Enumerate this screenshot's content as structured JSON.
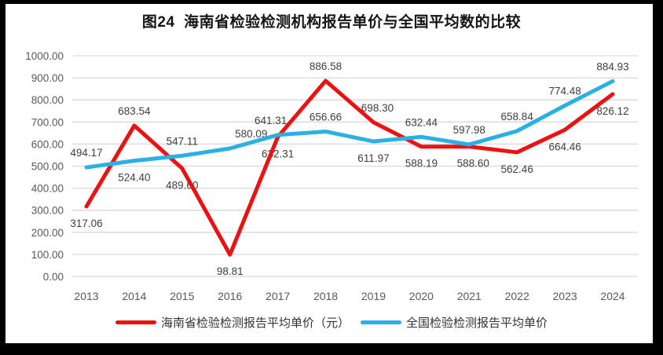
{
  "title": "图24  海南省检验检测机构报告单价与全国平均数的比较",
  "colors": {
    "hainan_red": "#EE1111",
    "national_blue": "#2BB0E6",
    "grid": "#D9D9D9",
    "axis_text": "#595959",
    "data_label": "#3F3F3F",
    "title_text": "#141414",
    "frame": "#000000"
  },
  "chart_data": {
    "type": "line",
    "categories": [
      "2013",
      "2014",
      "2015",
      "2016",
      "2017",
      "2018",
      "2019",
      "2020",
      "2021",
      "2022",
      "2023",
      "2024"
    ],
    "series": [
      {
        "key": "hainan",
        "name": "海南省检验检测报告平均单价（元）",
        "color": "#EE1111",
        "values": [
          317.06,
          683.54,
          489.6,
          98.81,
          632.31,
          886.58,
          698.3,
          588.19,
          588.6,
          562.46,
          664.46,
          826.12
        ],
        "label_pos": [
          "below",
          "above",
          "below",
          "below",
          "below",
          "above",
          "above",
          "below",
          "below",
          "below",
          "below",
          "below"
        ],
        "label_dx": [
          0,
          0,
          0,
          0,
          0,
          0,
          5,
          0,
          5,
          0,
          0,
          0
        ]
      },
      {
        "key": "national",
        "name": "全国检验检测报告平均单价",
        "color": "#2BB0E6",
        "values": [
          494.17,
          524.4,
          547.11,
          580.09,
          641.31,
          656.66,
          611.97,
          632.44,
          597.98,
          658.84,
          774.48,
          884.93
        ],
        "label_pos": [
          "above",
          "below",
          "above",
          "above",
          "above",
          "above",
          "below",
          "above",
          "above",
          "above",
          "above",
          "above"
        ],
        "label_dx": [
          0,
          0,
          0,
          27,
          -9,
          0,
          0,
          0,
          0,
          0,
          0,
          0
        ]
      }
    ],
    "ylim": [
      0,
      1000
    ],
    "ytick_step": 100,
    "ytick_labels": [
      "0.00",
      "100.00",
      "200.00",
      "300.00",
      "400.00",
      "500.00",
      "600.00",
      "700.00",
      "800.00",
      "900.00",
      "1000.00"
    ],
    "xlabel": "",
    "ylabel": "",
    "grid": true,
    "legend_position": "bottom"
  }
}
